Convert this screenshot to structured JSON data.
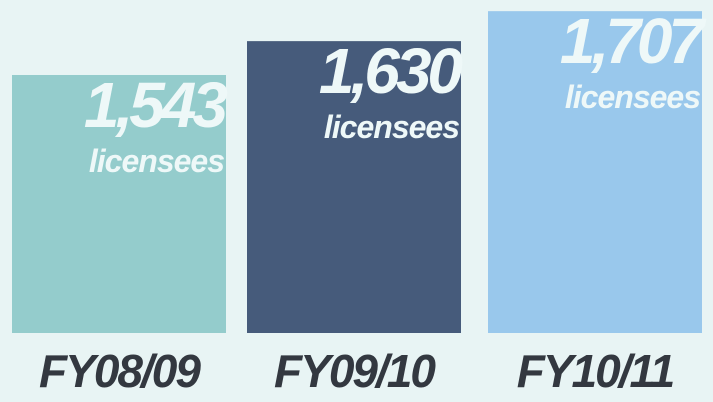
{
  "chart_data": {
    "type": "bar",
    "categories": [
      "FY08/09",
      "FY09/10",
      "FY10/11"
    ],
    "values": [
      1543,
      1630,
      1707
    ],
    "value_labels": [
      "1,543",
      "1,630",
      "1,707"
    ],
    "unit_label": "licensees",
    "colors": [
      "#94cccc",
      "#465b7b",
      "#99c8ec"
    ],
    "ylim": [
      880,
      1710
    ]
  }
}
